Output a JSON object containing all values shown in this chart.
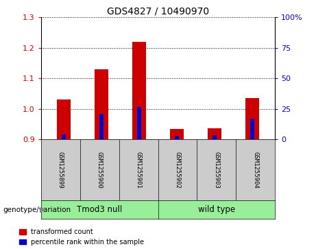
{
  "title": "GDS4827 / 10490970",
  "samples": [
    "GSM1255899",
    "GSM1255900",
    "GSM1255901",
    "GSM1255902",
    "GSM1255903",
    "GSM1255904"
  ],
  "transformed_counts": [
    1.03,
    1.13,
    1.22,
    0.935,
    0.937,
    1.035
  ],
  "transformed_bottom": [
    0.9,
    0.9,
    0.9,
    0.9,
    0.9,
    0.9
  ],
  "percentile_values": [
    0.916,
    0.984,
    1.006,
    0.912,
    0.913,
    0.968
  ],
  "percentile_bottom": [
    0.9,
    0.9,
    0.9,
    0.9,
    0.9,
    0.9
  ],
  "ylim": [
    0.9,
    1.3
  ],
  "yticks_left": [
    0.9,
    1.0,
    1.1,
    1.2,
    1.3
  ],
  "yticks_right": [
    0,
    25,
    50,
    75,
    100
  ],
  "ytick_labels_right": [
    "0",
    "25",
    "50",
    "75",
    "100%"
  ],
  "group1_label": "Tmod3 null",
  "group2_label": "wild type",
  "genotype_label": "genotype/variation",
  "legend_transformed": "transformed count",
  "legend_percentile": "percentile rank within the sample",
  "bar_color_red": "#cc0000",
  "bar_color_blue": "#0000cc",
  "group1_bg": "#99ee99",
  "group2_bg": "#99ee99",
  "sample_bg": "#cccccc",
  "bar_width": 0.35,
  "blue_bar_width": 0.12,
  "left_axis_color": "#cc0000",
  "right_axis_color": "#0000cc"
}
